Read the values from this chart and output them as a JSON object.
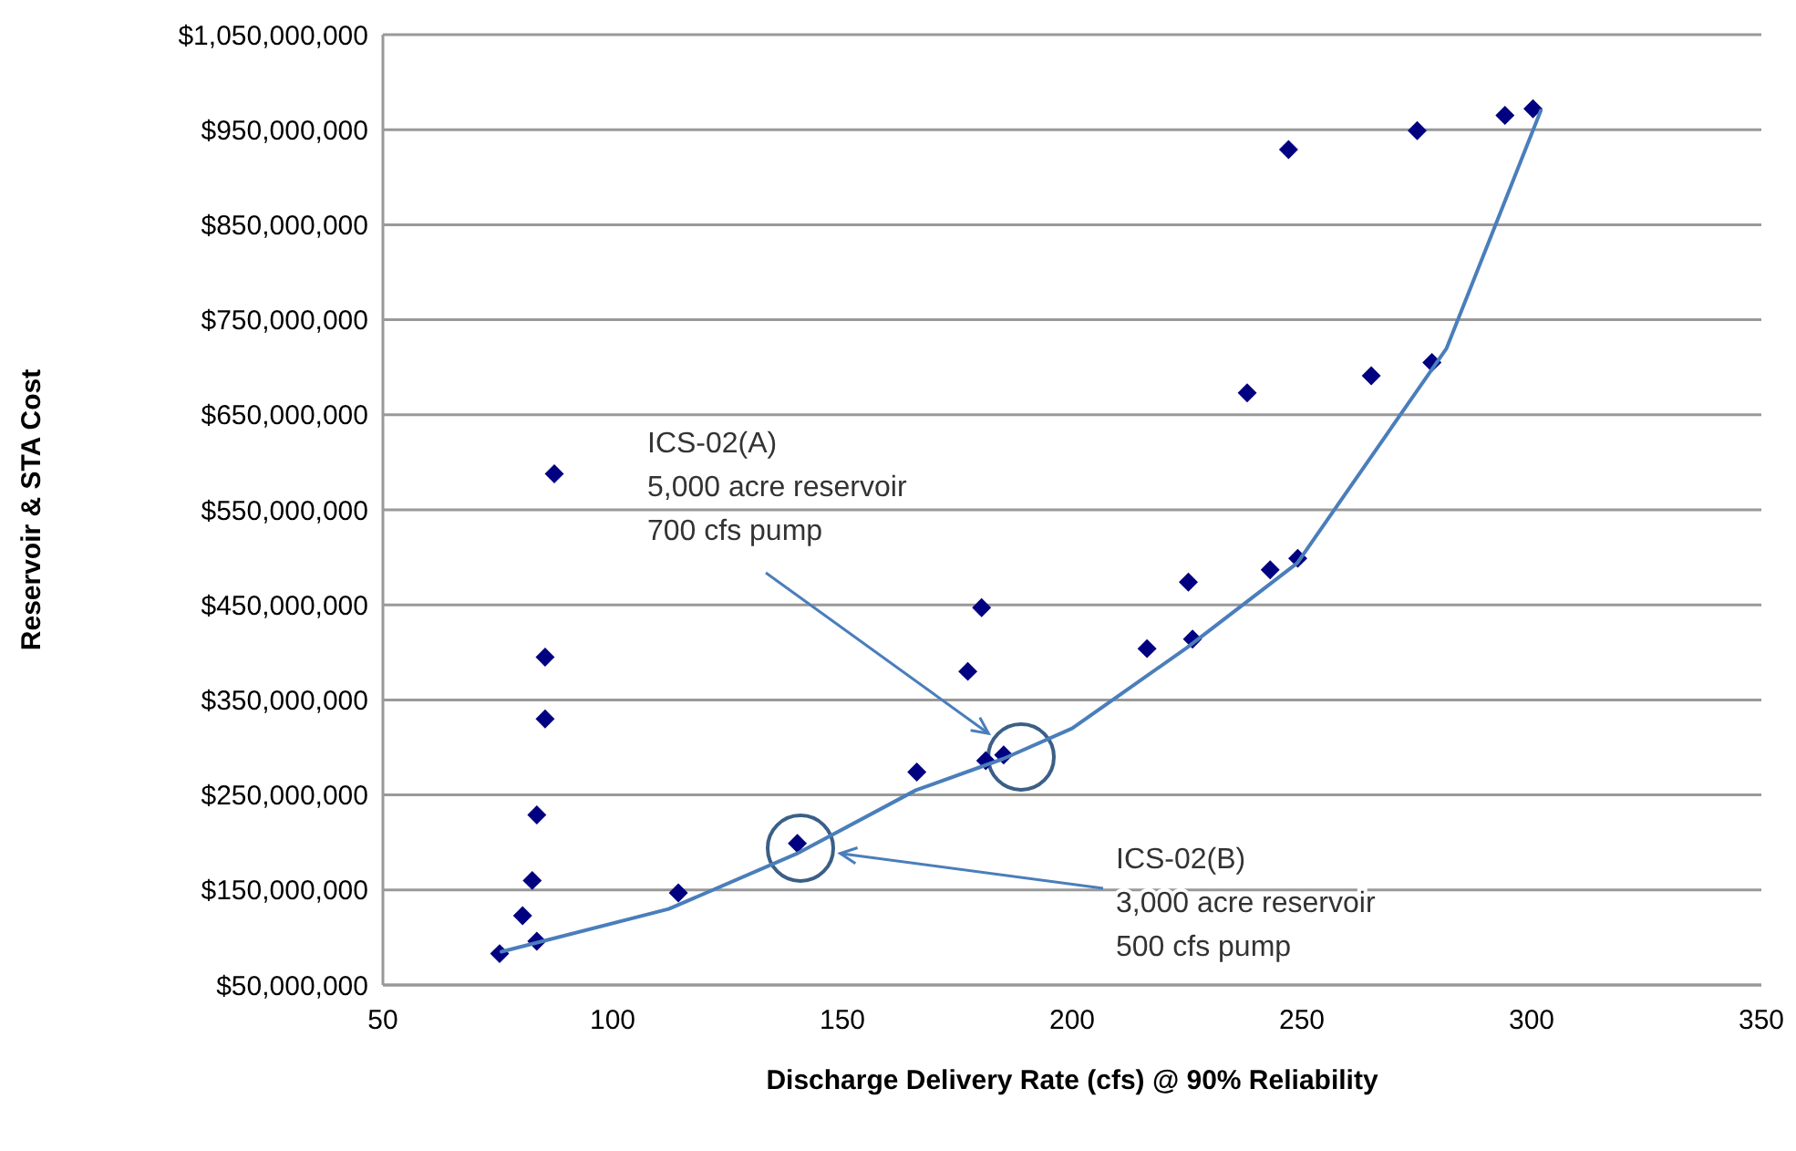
{
  "chart_data": {
    "type": "scatter",
    "xlabel": "Discharge Delivery Rate (cfs) @ 90% Reliability",
    "ylabel": "Reservoir & STA Cost",
    "xlim": [
      50,
      350
    ],
    "xticks": [
      50,
      100,
      150,
      200,
      250,
      300,
      350
    ],
    "ylim": [
      50000000,
      1050000000
    ],
    "yticks": [
      {
        "value": 50000000,
        "label": "$50,000,000"
      },
      {
        "value": 150000000,
        "label": "$150,000,000"
      },
      {
        "value": 250000000,
        "label": "$250,000,000"
      },
      {
        "value": 350000000,
        "label": "$350,000,000"
      },
      {
        "value": 450000000,
        "label": "$450,000,000"
      },
      {
        "value": 550000000,
        "label": "$550,000,000"
      },
      {
        "value": 650000000,
        "label": "$650,000,000"
      },
      {
        "value": 750000000,
        "label": "$750,000,000"
      },
      {
        "value": 850000000,
        "label": "$850,000,000"
      },
      {
        "value": 950000000,
        "label": "$950,000,000"
      },
      {
        "value": 1050000000,
        "label": "$1,050,000,000"
      }
    ],
    "grid": "y",
    "marker": "diamond",
    "series": [
      {
        "type": "scatter",
        "color": "#000080",
        "x": [
          75.4,
          83.5,
          80.4,
          82.5,
          83.5,
          85.3,
          85.3,
          87.3,
          114.3,
          140.2,
          166.2,
          181.2,
          185.1,
          177.3,
          180.3,
          216.3,
          226.2,
          225.3,
          243.1,
          249.1,
          238.1,
          265.1,
          278.3,
          247.1,
          275.1,
          294.2,
          300.3
        ],
        "values": [
          83000000,
          96000000,
          123000000,
          160000000,
          229000000,
          330000000,
          395000000,
          588000000,
          147000000,
          199000000,
          274000000,
          286000000,
          292000000,
          380000000,
          447000000,
          404000000,
          414000000,
          474000000,
          487000000,
          499000000,
          673000000,
          691000000,
          705000000,
          929000000,
          949000000,
          965000000,
          972000000
        ]
      },
      {
        "type": "line",
        "color": "#4a7ebb",
        "marker": "none",
        "line_style": "solid",
        "x": [
          75.8,
          112.2,
          140,
          166,
          185,
          200,
          225,
          249,
          281.5,
          302
        ],
        "values": [
          85000000,
          130000000,
          188000000,
          255000000,
          288000000,
          320000000,
          405000000,
          494000000,
          720000000,
          970000000
        ]
      }
    ],
    "annotations": [
      "ICS-02(A)\n5,000 acre reservoir\n700 cfs pump",
      "ICS-02(B)\n3,000 acre reservoir\n500 cfs pump"
    ]
  }
}
